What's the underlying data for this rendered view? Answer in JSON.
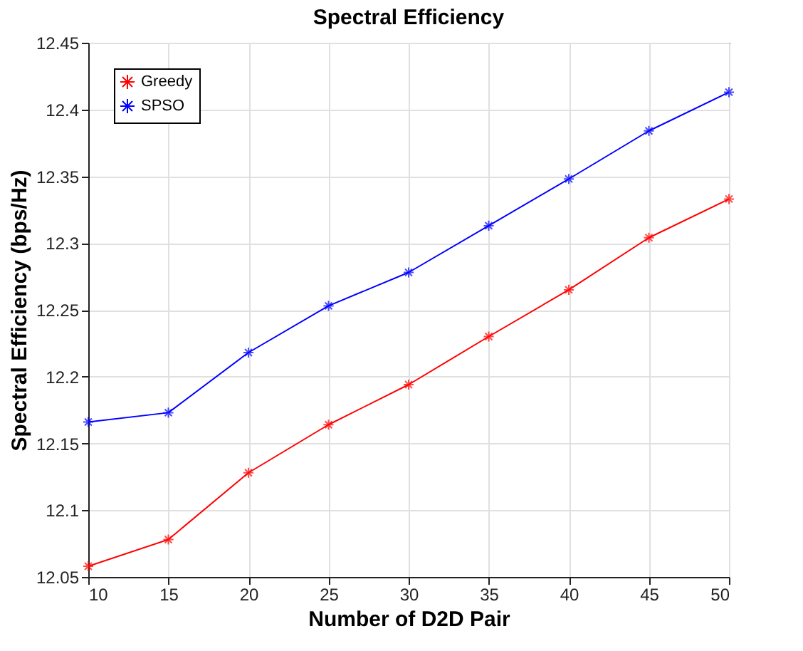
{
  "chart_data": {
    "type": "line",
    "title": "Spectral Efficiency",
    "xlabel": "Number of D2D Pair",
    "ylabel": "Spectral Efficiency (bps/Hz)",
    "x": [
      10,
      15,
      20,
      25,
      30,
      35,
      40,
      45,
      50
    ],
    "series": [
      {
        "name": "Greedy",
        "color": "#ff0000",
        "values": [
          12.058,
          12.078,
          12.128,
          12.164,
          12.194,
          12.23,
          12.265,
          12.304,
          12.333
        ]
      },
      {
        "name": "SPSO",
        "color": "#0000ff",
        "values": [
          12.166,
          12.173,
          12.218,
          12.253,
          12.278,
          12.313,
          12.348,
          12.384,
          12.413
        ]
      }
    ],
    "xlim": [
      10,
      50
    ],
    "xticks": [
      10,
      15,
      20,
      25,
      30,
      35,
      40,
      45,
      50
    ],
    "ylim": [
      12.05,
      12.45
    ],
    "yticks": [
      12.05,
      12.1,
      12.15,
      12.2,
      12.25,
      12.3,
      12.35,
      12.4,
      12.45
    ],
    "grid": true,
    "legend": "top left",
    "marker": "cross",
    "line_style": "solid"
  }
}
